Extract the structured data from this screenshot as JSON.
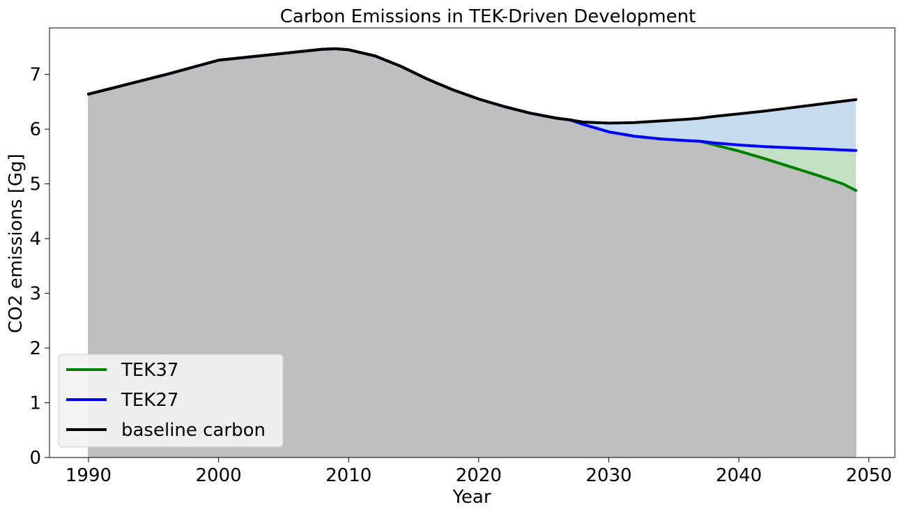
{
  "chart_data": {
    "type": "area",
    "title": "Carbon Emissions in TEK-Driven Development",
    "xlabel": "Year",
    "ylabel": "CO2 emissions [Gg]",
    "xlim": [
      1987,
      2052
    ],
    "ylim": [
      0,
      7.85
    ],
    "xticks": [
      1990,
      2000,
      2010,
      2020,
      2030,
      2040,
      2050
    ],
    "yticks": [
      0,
      1,
      2,
      3,
      4,
      5,
      6,
      7
    ],
    "grid": false,
    "legend_position": "lower-left",
    "colors": {
      "baseline_fill": "#bfbfbf",
      "tek27_fill": "#c6dbef",
      "tek37_fill": "#c2e0c2"
    },
    "x": [
      1990,
      1992,
      1994,
      1996,
      1998,
      2000,
      2002,
      2004,
      2006,
      2008,
      2009,
      2010,
      2012,
      2014,
      2016,
      2018,
      2020,
      2022,
      2024,
      2026,
      2027,
      2028,
      2030,
      2032,
      2034,
      2036,
      2037,
      2038,
      2040,
      2042,
      2044,
      2046,
      2048,
      2049
    ],
    "series": [
      {
        "name": "TEK37",
        "color": "#008000",
        "values": [
          6.64,
          6.76,
          6.88,
          7.0,
          7.13,
          7.26,
          7.31,
          7.36,
          7.41,
          7.46,
          7.47,
          7.45,
          7.34,
          7.15,
          6.92,
          6.72,
          6.55,
          6.41,
          6.29,
          6.2,
          6.17,
          6.09,
          5.95,
          5.87,
          5.82,
          5.79,
          5.78,
          5.72,
          5.6,
          5.46,
          5.31,
          5.16,
          5.0,
          4.88
        ]
      },
      {
        "name": "TEK27",
        "color": "#0000ff",
        "values": [
          6.64,
          6.76,
          6.88,
          7.0,
          7.13,
          7.26,
          7.31,
          7.36,
          7.41,
          7.46,
          7.47,
          7.45,
          7.34,
          7.15,
          6.92,
          6.72,
          6.55,
          6.41,
          6.29,
          6.2,
          6.17,
          6.09,
          5.95,
          5.87,
          5.82,
          5.79,
          5.78,
          5.75,
          5.71,
          5.68,
          5.66,
          5.64,
          5.62,
          5.61
        ]
      },
      {
        "name": "baseline carbon",
        "color": "#000000",
        "values": [
          6.64,
          6.76,
          6.88,
          7.0,
          7.13,
          7.26,
          7.31,
          7.36,
          7.41,
          7.46,
          7.47,
          7.45,
          7.34,
          7.15,
          6.92,
          6.72,
          6.55,
          6.41,
          6.29,
          6.2,
          6.17,
          6.13,
          6.11,
          6.12,
          6.15,
          6.18,
          6.2,
          6.23,
          6.28,
          6.33,
          6.39,
          6.45,
          6.51,
          6.54
        ]
      }
    ]
  }
}
